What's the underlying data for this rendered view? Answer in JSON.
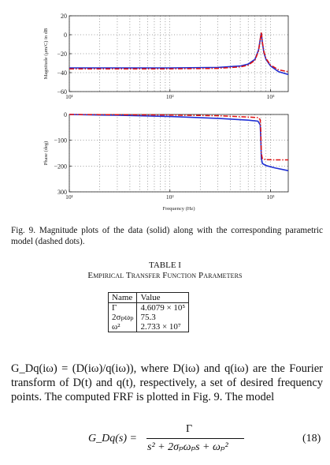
{
  "chart_data": [
    {
      "type": "line",
      "name": "magnitude",
      "ylabel": "Magnitude (μm/C) in dB",
      "xlabel": "",
      "xscale": "log",
      "xlim": [
        10,
        1500
      ],
      "ylim": [
        -60,
        20
      ],
      "yticks": [
        "20",
        "0",
        "−20",
        "−40",
        "−60"
      ],
      "xticks": [
        "10¹",
        "10²",
        "10³"
      ],
      "grid": true,
      "series": [
        {
          "name": "data",
          "style": "solid",
          "color": "#1f2fd4",
          "x": [
            10,
            30,
            100,
            300,
            500,
            600,
            700,
            760,
            790,
            810,
            830,
            860,
            900,
            1000,
            1200,
            1500
          ],
          "y": [
            -35,
            -35,
            -35,
            -34.5,
            -33,
            -31,
            -26,
            -16,
            -5,
            2,
            -9,
            -19,
            -26,
            -33,
            -39,
            -42
          ]
        },
        {
          "name": "model",
          "style": "dashdot",
          "color": "#e01010",
          "x": [
            10,
            30,
            100,
            300,
            500,
            600,
            700,
            760,
            790,
            810,
            830,
            860,
            900,
            1000,
            1200,
            1500
          ],
          "y": [
            -36,
            -36,
            -36,
            -35.5,
            -34,
            -32,
            -27,
            -17,
            -5,
            3,
            -8,
            -18,
            -25,
            -32,
            -37,
            -39
          ]
        }
      ]
    },
    {
      "type": "line",
      "name": "phase",
      "ylabel": "Phase (deg)",
      "xlabel": "Frequency (Hz)",
      "xscale": "log",
      "xlim": [
        10,
        1500
      ],
      "ylim": [
        -300,
        0
      ],
      "yticks": [
        "0",
        "−100",
        "−200",
        "300"
      ],
      "xticks": [
        "10¹",
        "10²",
        "10³"
      ],
      "grid": true,
      "series": [
        {
          "name": "data",
          "style": "solid",
          "color": "#1f2fd4",
          "x": [
            10,
            30,
            100,
            300,
            600,
            750,
            790,
            800,
            810,
            830,
            900,
            1100,
            1500
          ],
          "y": [
            0,
            -3,
            -8,
            -15,
            -22,
            -26,
            -40,
            -90,
            -170,
            -190,
            -198,
            -207,
            -218
          ]
        },
        {
          "name": "model",
          "style": "dashdot",
          "color": "#e01010",
          "x": [
            10,
            30,
            100,
            300,
            600,
            750,
            790,
            800,
            810,
            830,
            900,
            1100,
            1500
          ],
          "y": [
            0,
            -1,
            -2,
            -5,
            -10,
            -12,
            -20,
            -60,
            -150,
            -172,
            -175,
            -176,
            -176
          ]
        }
      ]
    }
  ],
  "caption": "Fig. 9.   Magnitude plots of the data (solid) along with the corresponding parametric model (dashed dots).",
  "table": {
    "title_line1": "TABLE I",
    "title_line2": "Empirical Transfer Function Parameters",
    "headers": [
      "Name",
      "Value"
    ],
    "rows": [
      [
        "Γ",
        "4.6079 × 10⁵"
      ],
      [
        "2σₚωₚ",
        "75.3"
      ],
      [
        "ω²",
        "2.733 × 10⁷"
      ]
    ]
  },
  "body_text": "G_Dq(iω) = (D(iω)/q(iω)), where D(iω) and q(iω) are the Fourier transform of D(t) and q(t), respectively, a set of desired frequency points. The computed FRF is plotted in Fig. 9. The model",
  "equation": {
    "lhs": "G_Dq(s) =",
    "numerator": "Γ",
    "denominator": "s² + 2σₚωₚs + ωₚ²",
    "number": "(18)"
  }
}
